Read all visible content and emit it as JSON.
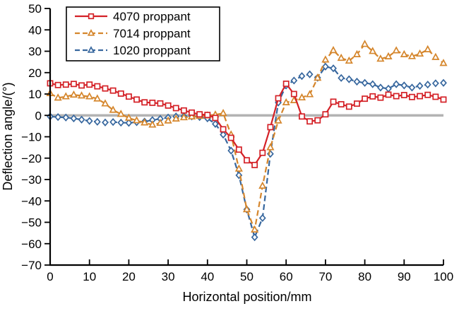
{
  "chart_data": {
    "type": "line",
    "title": "",
    "xlabel": "Horizontal position/mm",
    "ylabel": "Deflection angle/(°)",
    "xlim": [
      0,
      100
    ],
    "ylim": [
      -70,
      50
    ],
    "x_ticks": [
      0,
      10,
      20,
      30,
      40,
      50,
      60,
      70,
      80,
      90,
      100
    ],
    "y_ticks": [
      50,
      40,
      30,
      20,
      10,
      0,
      -10,
      -20,
      -30,
      -40,
      -50,
      -60,
      -70
    ],
    "grid": false,
    "zero_line_value": 0,
    "zero_line_color": "#b3b3b3",
    "legend_position": "top-left",
    "axis_color": "#000000",
    "x": [
      0,
      2,
      4,
      6,
      8,
      10,
      12,
      14,
      16,
      18,
      20,
      22,
      24,
      26,
      28,
      30,
      32,
      34,
      36,
      38,
      40,
      42,
      44,
      46,
      48,
      50,
      52,
      54,
      56,
      58,
      60,
      62,
      64,
      66,
      68,
      70,
      72,
      74,
      76,
      78,
      80,
      82,
      84,
      86,
      88,
      90,
      92,
      94,
      96,
      98,
      100
    ],
    "series": [
      {
        "name": "4070 proppant",
        "color": "#d42127",
        "line_style": "solid",
        "marker": "square",
        "legend_marker": "square",
        "values": [
          15.0,
          14.2,
          14.4,
          14.7,
          14.0,
          14.4,
          13.6,
          12.6,
          11.6,
          10.2,
          8.8,
          7.4,
          6.1,
          5.9,
          5.6,
          4.6,
          3.4,
          2.3,
          1.3,
          0.5,
          0.2,
          -1.2,
          -6.5,
          -10.5,
          -16.0,
          -21.0,
          -23.2,
          -17.5,
          -5.5,
          8.0,
          14.8,
          10.0,
          -0.5,
          -2.8,
          -2.3,
          0.5,
          6.4,
          5.2,
          4.1,
          5.5,
          7.8,
          8.9,
          8.3,
          9.7,
          9.0,
          9.5,
          8.6,
          9.0,
          9.6,
          8.7,
          7.4
        ]
      },
      {
        "name": "7014 proppant",
        "color": "#d5862c",
        "line_style": "dashed",
        "marker": "triangle",
        "legend_marker": "triangle",
        "values": [
          10.3,
          8.2,
          8.8,
          9.6,
          9.2,
          8.8,
          7.8,
          5.5,
          2.5,
          0.6,
          -1.2,
          -2.4,
          -3.4,
          -4.4,
          -3.6,
          -2.5,
          -1.6,
          -1.0,
          -0.6,
          -0.3,
          -0.1,
          0.3,
          1.0,
          -9.0,
          -25.0,
          -44.0,
          -53.5,
          -33.0,
          -15.0,
          -2.5,
          6.0,
          7.0,
          8.3,
          9.8,
          17.5,
          26.0,
          30.4,
          26.8,
          25.5,
          28.5,
          33.3,
          30.0,
          26.4,
          27.5,
          30.3,
          28.5,
          27.6,
          28.8,
          30.8,
          27.2,
          24.4
        ]
      },
      {
        "name": "1020 proppant",
        "color": "#37679e",
        "line_style": "dashed",
        "marker": "diamond",
        "legend_marker": "triangle",
        "values": [
          -0.5,
          -0.8,
          -1.0,
          -1.4,
          -2.0,
          -2.6,
          -3.0,
          -3.3,
          -3.1,
          -3.4,
          -3.5,
          -3.2,
          -2.9,
          -2.2,
          -1.6,
          -1.0,
          -0.5,
          -0.4,
          -0.5,
          -0.8,
          -1.4,
          -4.0,
          -9.0,
          -16.5,
          -28.0,
          -44.0,
          -57.0,
          -48.0,
          -18.0,
          6.0,
          14.0,
          16.3,
          18.4,
          19.2,
          17.6,
          22.8,
          22.0,
          17.5,
          16.9,
          15.8,
          15.2,
          14.6,
          13.0,
          12.5,
          14.6,
          14.0,
          13.0,
          13.8,
          14.4,
          15.0,
          15.2
        ]
      }
    ]
  }
}
